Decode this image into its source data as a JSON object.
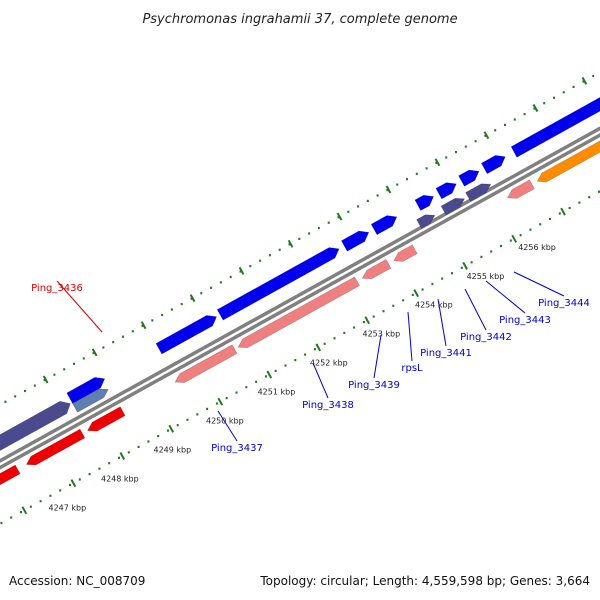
{
  "title": "Psychromonas ingrahamii 37, complete genome",
  "footer": {
    "accession": "Accession: NC_008709",
    "topology": "Topology: circular; Length: 4,559,598 bp; Genes: 3,664"
  },
  "colors": {
    "backbone": "#808080",
    "tick_dots": "#1f7a1f",
    "forward_gene": "#0000ee",
    "forward_gene_light": "#5f7fb0",
    "dark_gene": "#4b4a8f",
    "reverse_gene": "#ee0000",
    "reverse_gene_light": "#f08080",
    "orange_gene": "#ff8c00",
    "label_blue": "#0000cc",
    "label_red": "#dd0000"
  },
  "scale_labels": [
    "4247 kbp",
    "4248 kbp",
    "4249 kbp",
    "4250 kbp",
    "4251 kbp",
    "4252 kbp",
    "4253 kbp",
    "4254 kbp",
    "4255 kbp",
    "4256 kbp"
  ],
  "gene_labels": [
    {
      "text": "Ping_3436",
      "color": "red"
    },
    {
      "text": "Ping_3437",
      "color": "blue"
    },
    {
      "text": "Ping_3438",
      "color": "blue"
    },
    {
      "text": "Ping_3439",
      "color": "blue"
    },
    {
      "text": "rpsL",
      "color": "blue"
    },
    {
      "text": "Ping_3441",
      "color": "blue"
    },
    {
      "text": "Ping_3442",
      "color": "blue"
    },
    {
      "text": "Ping_3443",
      "color": "blue"
    },
    {
      "text": "Ping_3444",
      "color": "blue"
    }
  ]
}
